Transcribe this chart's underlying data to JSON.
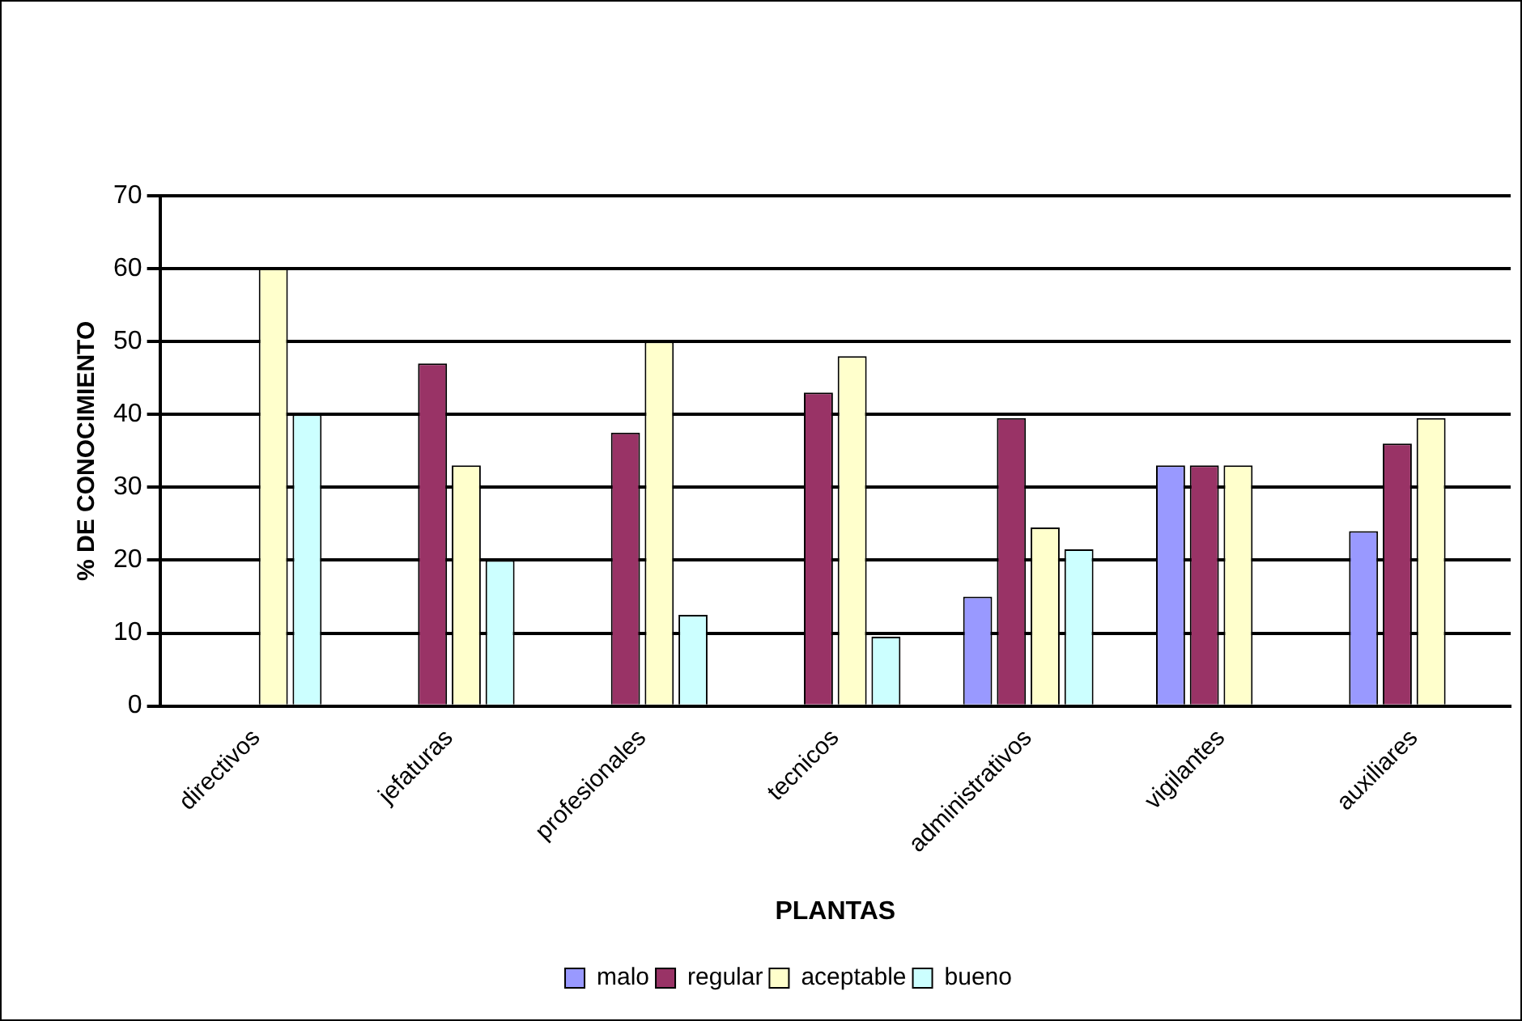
{
  "chart_data": {
    "type": "bar",
    "xlabel": "PLANTAS",
    "ylabel": "% DE CONOCIMIENTO",
    "categories": [
      "directivos",
      "jefaturas",
      "profesionales",
      "tecnicos",
      "administrativos",
      "vigilantes",
      "auxiliares"
    ],
    "series": [
      {
        "name": "malo",
        "color": "#9999ff",
        "values": [
          null,
          null,
          null,
          null,
          15,
          33,
          24
        ]
      },
      {
        "name": "regular",
        "color": "#993366",
        "values": [
          null,
          47,
          37.5,
          43,
          39.5,
          33,
          36
        ]
      },
      {
        "name": "aceptable",
        "color": "#ffffcc",
        "values": [
          60,
          33,
          50,
          48,
          24.5,
          33,
          39.5
        ]
      },
      {
        "name": "bueno",
        "color": "#ccffff",
        "values": [
          40,
          20,
          12.5,
          9.5,
          21.5,
          null,
          null
        ]
      }
    ],
    "ylim": [
      0,
      70
    ],
    "yticks": [
      0,
      10,
      20,
      30,
      40,
      50,
      60,
      70
    ],
    "grid": "y",
    "legend": "bottom"
  }
}
